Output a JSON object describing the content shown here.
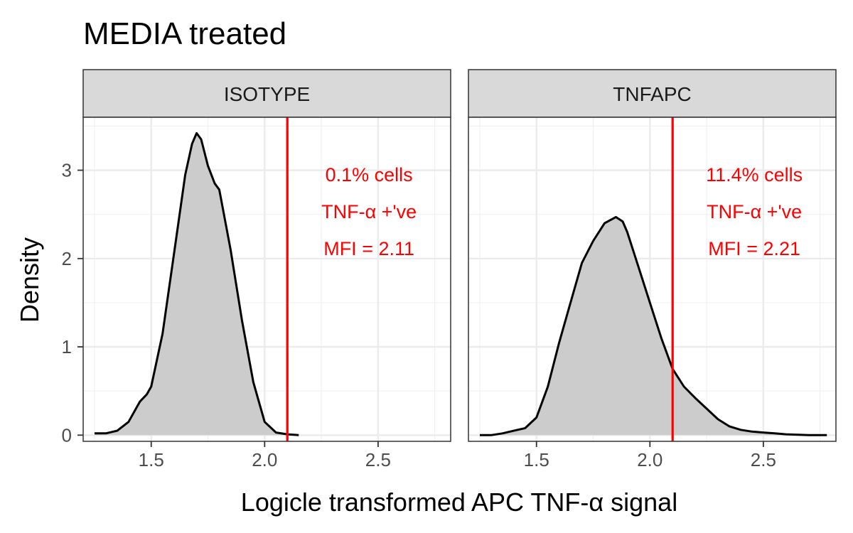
{
  "chart_data": {
    "type": "area",
    "title": "MEDIA treated",
    "xlabel": "Logicle transformed APC TNF-α signal",
    "ylabel": "Density",
    "xlim": [
      1.2,
      2.82
    ],
    "ylim": [
      -0.07,
      3.6
    ],
    "x_ticks": [
      1.5,
      2.0,
      2.5
    ],
    "x_tick_labels": [
      "1.5",
      "2.0",
      "2.5"
    ],
    "y_ticks": [
      0,
      1,
      2,
      3
    ],
    "y_tick_labels": [
      "0",
      "1",
      "2",
      "3"
    ],
    "grid": true,
    "fill_color": "#cccccc",
    "line_color": "#000000",
    "threshold_color": "#ff0000",
    "panels": [
      {
        "label": "ISOTYPE",
        "threshold_x": 2.1,
        "annotation": [
          "0.1% cells",
          "TNF-α +'ve",
          "MFI = 2.11"
        ],
        "density": {
          "x": [
            1.25,
            1.3,
            1.35,
            1.4,
            1.45,
            1.48,
            1.5,
            1.55,
            1.6,
            1.65,
            1.68,
            1.7,
            1.72,
            1.75,
            1.78,
            1.8,
            1.85,
            1.9,
            1.95,
            2.0,
            2.05,
            2.1,
            2.15
          ],
          "y": [
            0.02,
            0.02,
            0.05,
            0.15,
            0.38,
            0.46,
            0.55,
            1.15,
            2.05,
            2.95,
            3.3,
            3.42,
            3.35,
            3.05,
            2.85,
            2.78,
            2.1,
            1.3,
            0.6,
            0.15,
            0.03,
            0.01,
            0.0
          ]
        }
      },
      {
        "label": "TNFAPC",
        "threshold_x": 2.1,
        "annotation": [
          "11.4% cells",
          "TNF-α +'ve",
          "MFI = 2.21"
        ],
        "density": {
          "x": [
            1.25,
            1.3,
            1.35,
            1.4,
            1.45,
            1.5,
            1.55,
            1.6,
            1.65,
            1.7,
            1.75,
            1.8,
            1.85,
            1.88,
            1.9,
            1.95,
            2.0,
            2.05,
            2.1,
            2.15,
            2.2,
            2.25,
            2.3,
            2.35,
            2.4,
            2.45,
            2.5,
            2.55,
            2.6,
            2.7,
            2.78
          ],
          "y": [
            0.0,
            0.0,
            0.02,
            0.05,
            0.08,
            0.2,
            0.55,
            1.05,
            1.5,
            1.95,
            2.2,
            2.4,
            2.47,
            2.42,
            2.3,
            1.9,
            1.5,
            1.1,
            0.75,
            0.55,
            0.42,
            0.3,
            0.18,
            0.1,
            0.06,
            0.04,
            0.03,
            0.02,
            0.01,
            0.0,
            0.0
          ]
        }
      }
    ]
  }
}
